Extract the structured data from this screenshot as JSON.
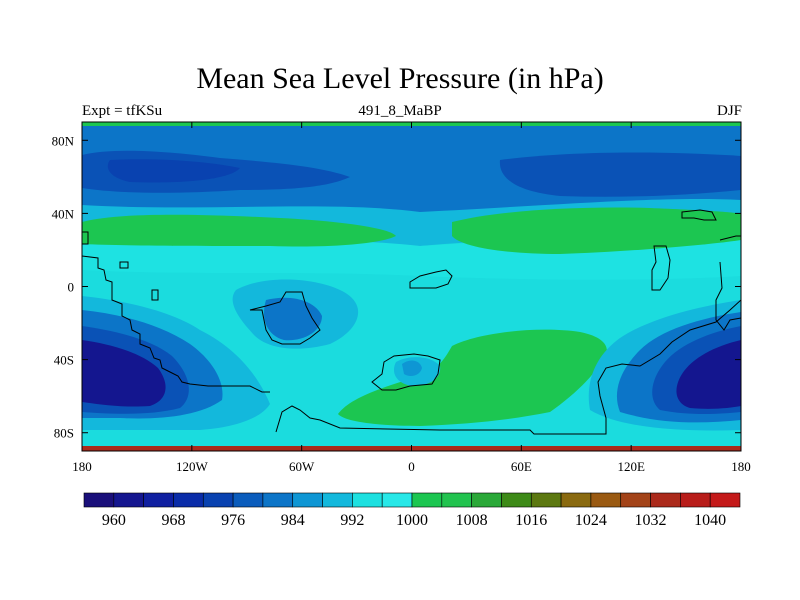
{
  "chart_data": {
    "type": "map-contour",
    "title": "Mean Sea Level Pressure (in hPa)",
    "left_string": "Expt = tfKSu",
    "center_string": "491_8_MaBP",
    "right_string": "DJF",
    "xticks": [
      "180",
      "120W",
      "60W",
      "0",
      "60E",
      "120E",
      "180"
    ],
    "xtick_values": [
      -180,
      -120,
      -60,
      0,
      60,
      120,
      180
    ],
    "yticks": [
      "80N",
      "40N",
      "0",
      "40S",
      "80S"
    ],
    "ytick_values": [
      80,
      40,
      0,
      -40,
      -80
    ],
    "xlim": [
      -180,
      180
    ],
    "ylim": [
      -90,
      90
    ],
    "units": "hPa",
    "colorbar": {
      "levels": [
        956,
        960,
        964,
        968,
        972,
        976,
        980,
        984,
        988,
        992,
        996,
        1000,
        1004,
        1008,
        1012,
        1016,
        1020,
        1024,
        1028,
        1032,
        1036,
        1040
      ],
      "labels": [
        "960",
        "968",
        "976",
        "984",
        "992",
        "1000",
        "1008",
        "1016",
        "1024",
        "1032",
        "1040"
      ],
      "colors": [
        "#1a0f7a",
        "#14168f",
        "#0f1fa0",
        "#0a2ca8",
        "#0942b0",
        "#0a5cbc",
        "#0c75c8",
        "#0e96d4",
        "#13b8dc",
        "#1de0e0",
        "#28e8e8",
        "#1cc651",
        "#22c34f",
        "#2aa838",
        "#3d8a17",
        "#5c7810",
        "#8a6a10",
        "#9a5a12",
        "#a34318",
        "#ab2a1b",
        "#b81d1a",
        "#c41a1a"
      ]
    }
  }
}
